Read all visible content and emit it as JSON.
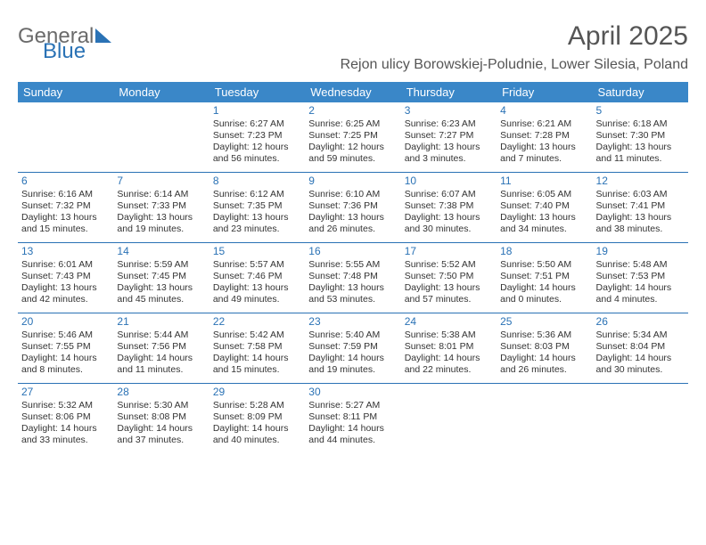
{
  "brand": {
    "word1": "General",
    "word2": "Blue"
  },
  "title": "April 2025",
  "location": "Rejon ulicy Borowskiej-Poludnie, Lower Silesia, Poland",
  "colors": {
    "header_bg": "#3a87c8",
    "accent": "#2a72b5",
    "text": "#333333",
    "title_text": "#555555",
    "bg": "#ffffff"
  },
  "weekdays": [
    "Sunday",
    "Monday",
    "Tuesday",
    "Wednesday",
    "Thursday",
    "Friday",
    "Saturday"
  ],
  "weeks": [
    [
      null,
      null,
      {
        "n": "1",
        "sunrise": "Sunrise: 6:27 AM",
        "sunset": "Sunset: 7:23 PM",
        "daylight": "Daylight: 12 hours and 56 minutes."
      },
      {
        "n": "2",
        "sunrise": "Sunrise: 6:25 AM",
        "sunset": "Sunset: 7:25 PM",
        "daylight": "Daylight: 12 hours and 59 minutes."
      },
      {
        "n": "3",
        "sunrise": "Sunrise: 6:23 AM",
        "sunset": "Sunset: 7:27 PM",
        "daylight": "Daylight: 13 hours and 3 minutes."
      },
      {
        "n": "4",
        "sunrise": "Sunrise: 6:21 AM",
        "sunset": "Sunset: 7:28 PM",
        "daylight": "Daylight: 13 hours and 7 minutes."
      },
      {
        "n": "5",
        "sunrise": "Sunrise: 6:18 AM",
        "sunset": "Sunset: 7:30 PM",
        "daylight": "Daylight: 13 hours and 11 minutes."
      }
    ],
    [
      {
        "n": "6",
        "sunrise": "Sunrise: 6:16 AM",
        "sunset": "Sunset: 7:32 PM",
        "daylight": "Daylight: 13 hours and 15 minutes."
      },
      {
        "n": "7",
        "sunrise": "Sunrise: 6:14 AM",
        "sunset": "Sunset: 7:33 PM",
        "daylight": "Daylight: 13 hours and 19 minutes."
      },
      {
        "n": "8",
        "sunrise": "Sunrise: 6:12 AM",
        "sunset": "Sunset: 7:35 PM",
        "daylight": "Daylight: 13 hours and 23 minutes."
      },
      {
        "n": "9",
        "sunrise": "Sunrise: 6:10 AM",
        "sunset": "Sunset: 7:36 PM",
        "daylight": "Daylight: 13 hours and 26 minutes."
      },
      {
        "n": "10",
        "sunrise": "Sunrise: 6:07 AM",
        "sunset": "Sunset: 7:38 PM",
        "daylight": "Daylight: 13 hours and 30 minutes."
      },
      {
        "n": "11",
        "sunrise": "Sunrise: 6:05 AM",
        "sunset": "Sunset: 7:40 PM",
        "daylight": "Daylight: 13 hours and 34 minutes."
      },
      {
        "n": "12",
        "sunrise": "Sunrise: 6:03 AM",
        "sunset": "Sunset: 7:41 PM",
        "daylight": "Daylight: 13 hours and 38 minutes."
      }
    ],
    [
      {
        "n": "13",
        "sunrise": "Sunrise: 6:01 AM",
        "sunset": "Sunset: 7:43 PM",
        "daylight": "Daylight: 13 hours and 42 minutes."
      },
      {
        "n": "14",
        "sunrise": "Sunrise: 5:59 AM",
        "sunset": "Sunset: 7:45 PM",
        "daylight": "Daylight: 13 hours and 45 minutes."
      },
      {
        "n": "15",
        "sunrise": "Sunrise: 5:57 AM",
        "sunset": "Sunset: 7:46 PM",
        "daylight": "Daylight: 13 hours and 49 minutes."
      },
      {
        "n": "16",
        "sunrise": "Sunrise: 5:55 AM",
        "sunset": "Sunset: 7:48 PM",
        "daylight": "Daylight: 13 hours and 53 minutes."
      },
      {
        "n": "17",
        "sunrise": "Sunrise: 5:52 AM",
        "sunset": "Sunset: 7:50 PM",
        "daylight": "Daylight: 13 hours and 57 minutes."
      },
      {
        "n": "18",
        "sunrise": "Sunrise: 5:50 AM",
        "sunset": "Sunset: 7:51 PM",
        "daylight": "Daylight: 14 hours and 0 minutes."
      },
      {
        "n": "19",
        "sunrise": "Sunrise: 5:48 AM",
        "sunset": "Sunset: 7:53 PM",
        "daylight": "Daylight: 14 hours and 4 minutes."
      }
    ],
    [
      {
        "n": "20",
        "sunrise": "Sunrise: 5:46 AM",
        "sunset": "Sunset: 7:55 PM",
        "daylight": "Daylight: 14 hours and 8 minutes."
      },
      {
        "n": "21",
        "sunrise": "Sunrise: 5:44 AM",
        "sunset": "Sunset: 7:56 PM",
        "daylight": "Daylight: 14 hours and 11 minutes."
      },
      {
        "n": "22",
        "sunrise": "Sunrise: 5:42 AM",
        "sunset": "Sunset: 7:58 PM",
        "daylight": "Daylight: 14 hours and 15 minutes."
      },
      {
        "n": "23",
        "sunrise": "Sunrise: 5:40 AM",
        "sunset": "Sunset: 7:59 PM",
        "daylight": "Daylight: 14 hours and 19 minutes."
      },
      {
        "n": "24",
        "sunrise": "Sunrise: 5:38 AM",
        "sunset": "Sunset: 8:01 PM",
        "daylight": "Daylight: 14 hours and 22 minutes."
      },
      {
        "n": "25",
        "sunrise": "Sunrise: 5:36 AM",
        "sunset": "Sunset: 8:03 PM",
        "daylight": "Daylight: 14 hours and 26 minutes."
      },
      {
        "n": "26",
        "sunrise": "Sunrise: 5:34 AM",
        "sunset": "Sunset: 8:04 PM",
        "daylight": "Daylight: 14 hours and 30 minutes."
      }
    ],
    [
      {
        "n": "27",
        "sunrise": "Sunrise: 5:32 AM",
        "sunset": "Sunset: 8:06 PM",
        "daylight": "Daylight: 14 hours and 33 minutes."
      },
      {
        "n": "28",
        "sunrise": "Sunrise: 5:30 AM",
        "sunset": "Sunset: 8:08 PM",
        "daylight": "Daylight: 14 hours and 37 minutes."
      },
      {
        "n": "29",
        "sunrise": "Sunrise: 5:28 AM",
        "sunset": "Sunset: 8:09 PM",
        "daylight": "Daylight: 14 hours and 40 minutes."
      },
      {
        "n": "30",
        "sunrise": "Sunrise: 5:27 AM",
        "sunset": "Sunset: 8:11 PM",
        "daylight": "Daylight: 14 hours and 44 minutes."
      },
      null,
      null,
      null
    ]
  ]
}
